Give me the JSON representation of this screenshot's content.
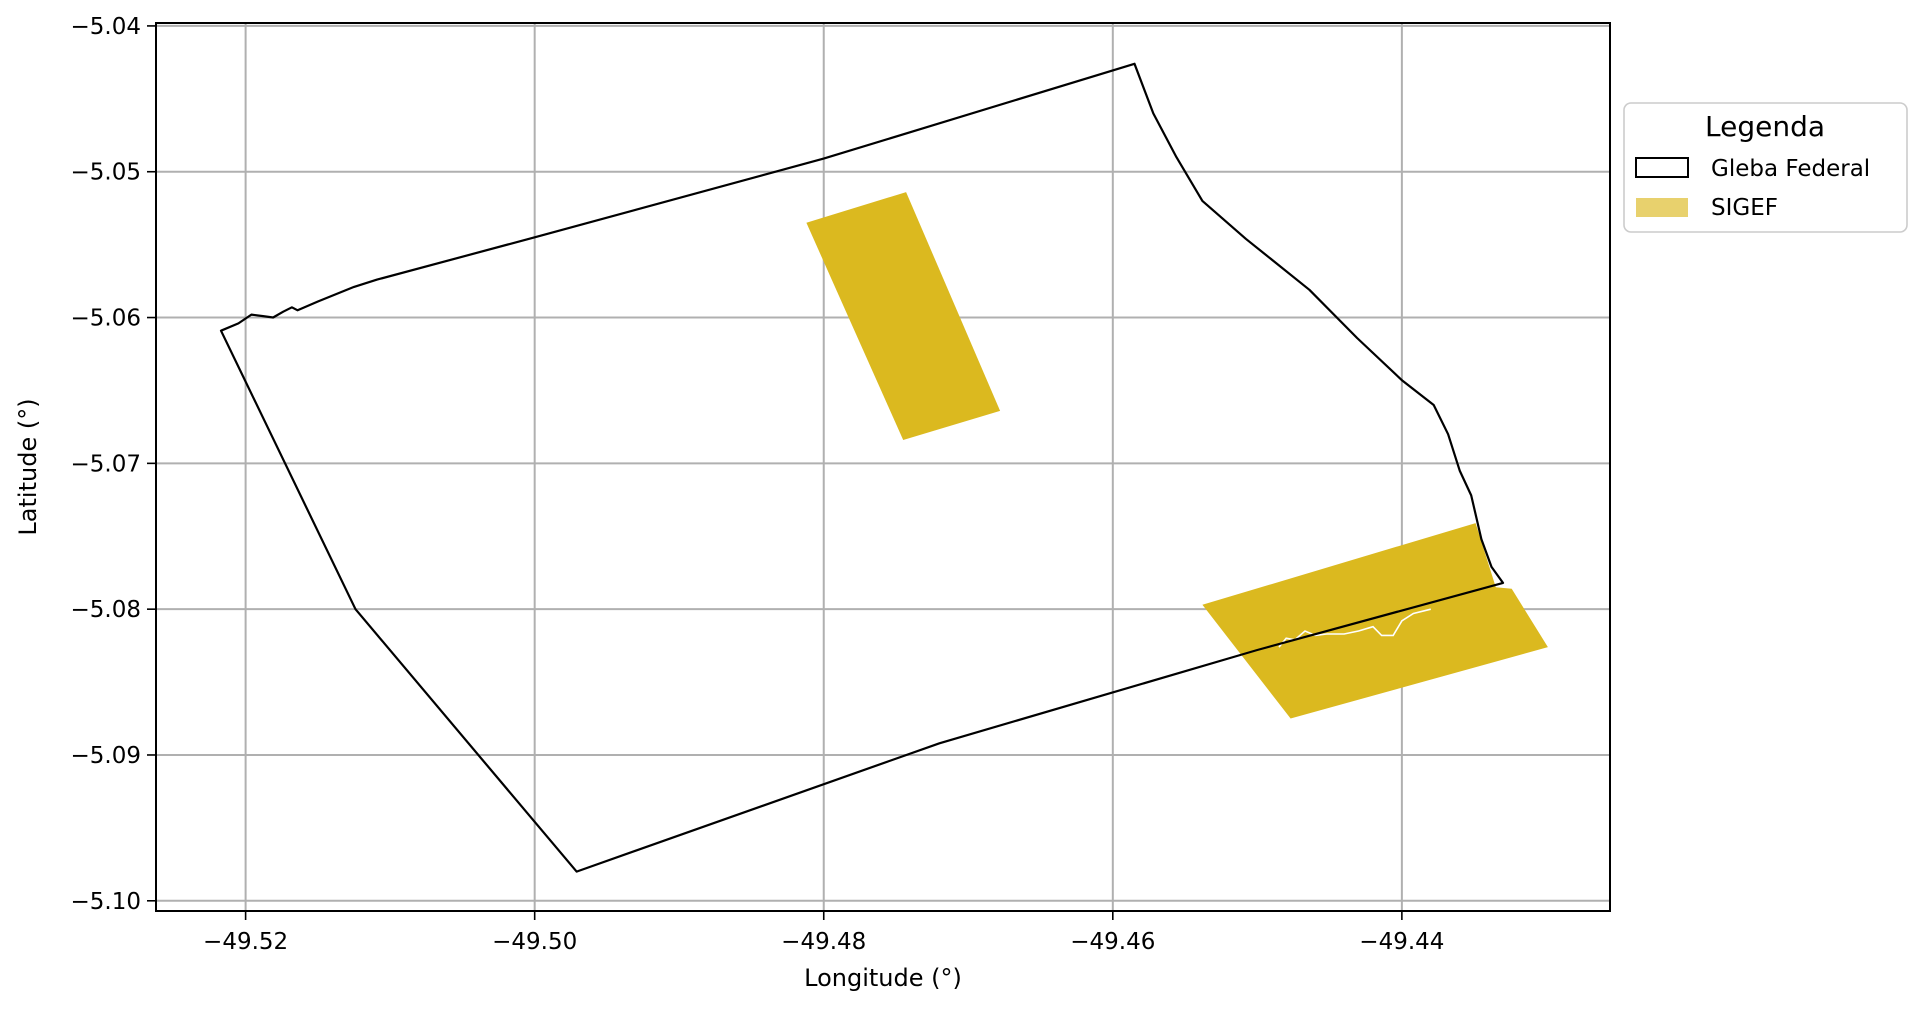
{
  "chart_data": {
    "type": "map",
    "xlabel": "Longitude (°)",
    "ylabel": "Latitude (°)",
    "xlim": [
      -49.5262,
      -49.4256
    ],
    "ylim": [
      -5.1007,
      -5.0398
    ],
    "grid": true,
    "x_ticks": [
      {
        "value": -49.52,
        "label": "−49.52"
      },
      {
        "value": -49.5,
        "label": "−49.50"
      },
      {
        "value": -49.48,
        "label": "−49.48"
      },
      {
        "value": -49.46,
        "label": "−49.46"
      },
      {
        "value": -49.44,
        "label": "−49.44"
      }
    ],
    "y_ticks": [
      {
        "value": -5.04,
        "label": "−5.04"
      },
      {
        "value": -5.05,
        "label": "−5.05"
      },
      {
        "value": -5.06,
        "label": "−5.06"
      },
      {
        "value": -5.07,
        "label": "−5.07"
      },
      {
        "value": -5.08,
        "label": "−5.08"
      },
      {
        "value": -5.09,
        "label": "−5.09"
      },
      {
        "value": -5.1,
        "label": "−5.10"
      }
    ],
    "legend": {
      "title": "Legenda",
      "placement": "outside-right-top",
      "entries": [
        {
          "label": "Gleba Federal",
          "style": "outline",
          "edge_color": "#000000"
        },
        {
          "label": "SIGEF",
          "style": "fill",
          "fill_color": "#dbb91f"
        }
      ]
    },
    "layers": {
      "gleba_federal": {
        "label": "Gleba Federal",
        "edge_color": "#000000",
        "fill": "none",
        "coordinates": [
          [
            -49.5217,
            -5.0609
          ],
          [
            -49.5205,
            -5.0604
          ],
          [
            -49.5196,
            -5.0598
          ],
          [
            -49.5188,
            -5.0599
          ],
          [
            -49.5181,
            -5.06
          ],
          [
            -49.5174,
            -5.0596
          ],
          [
            -49.5168,
            -5.0593
          ],
          [
            -49.5164,
            -5.0595
          ],
          [
            -49.515,
            -5.0589
          ],
          [
            -49.5125,
            -5.0579
          ],
          [
            -49.5109,
            -5.0574
          ],
          [
            -49.5,
            -5.0545
          ],
          [
            -49.48,
            -5.0491
          ],
          [
            -49.4585,
            -5.0426
          ],
          [
            -49.4572,
            -5.046
          ],
          [
            -49.4556,
            -5.049
          ],
          [
            -49.4538,
            -5.052
          ],
          [
            -49.4508,
            -5.0546
          ],
          [
            -49.4464,
            -5.0581
          ],
          [
            -49.4431,
            -5.0614
          ],
          [
            -49.44,
            -5.0643
          ],
          [
            -49.4378,
            -5.066
          ],
          [
            -49.4368,
            -5.068
          ],
          [
            -49.436,
            -5.0705
          ],
          [
            -49.4352,
            -5.0722
          ],
          [
            -49.4345,
            -5.0752
          ],
          [
            -49.4338,
            -5.0771
          ],
          [
            -49.433,
            -5.0782
          ],
          [
            -49.45,
            -5.0828
          ],
          [
            -49.472,
            -5.0892
          ],
          [
            -49.4971,
            -5.098
          ],
          [
            -49.5124,
            -5.08
          ]
        ]
      },
      "sigef": {
        "label": "SIGEF",
        "fill_color": "#dbb91f",
        "parcels": [
          [
            [
              -49.4812,
              -5.0535
            ],
            [
              -49.4743,
              -5.0514
            ],
            [
              -49.4678,
              -5.0664
            ],
            [
              -49.4745,
              -5.0684
            ]
          ],
          [
            [
              -49.4538,
              -5.0797
            ],
            [
              -49.4349,
              -5.0741
            ],
            [
              -49.4335,
              -5.0785
            ],
            [
              -49.4324,
              -5.0786
            ],
            [
              -49.4299,
              -5.0826
            ],
            [
              -49.4477,
              -5.0875
            ]
          ]
        ]
      },
      "water_trace": {
        "stroke_color": "#ffffff",
        "coordinates": [
          [
            -49.4485,
            -5.0826
          ],
          [
            -49.448,
            -5.082
          ],
          [
            -49.4474,
            -5.0821
          ],
          [
            -49.4467,
            -5.0815
          ],
          [
            -49.446,
            -5.0818
          ],
          [
            -49.4452,
            -5.0817
          ],
          [
            -49.444,
            -5.0817
          ],
          [
            -49.443,
            -5.0815
          ],
          [
            -49.442,
            -5.0812
          ],
          [
            -49.4414,
            -5.0818
          ],
          [
            -49.4406,
            -5.0818
          ],
          [
            -49.44,
            -5.0808
          ],
          [
            -49.4392,
            -5.0803
          ],
          [
            -49.438,
            -5.08
          ]
        ]
      }
    }
  }
}
